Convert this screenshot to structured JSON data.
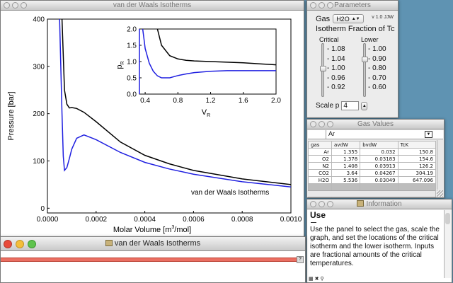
{
  "main_window": {
    "title": "van der Waals Isotherms",
    "plot": {
      "ylabel": "Pressure [bar]",
      "xlabel_prefix": "Molar Volume [m",
      "xlabel_sup": "3",
      "xlabel_suffix": "/mol]",
      "x_ticks": [
        "0.0000",
        "0.0002",
        "0.0004",
        "0.0006",
        "0.0008",
        "0.0010"
      ],
      "y_ticks": [
        "0",
        "100",
        "200",
        "300",
        "400"
      ],
      "annotation": "van der Waals Isotherms",
      "inset": {
        "ylabel_main": "p",
        "ylabel_sub": "R",
        "xlabel_main": "V",
        "xlabel_sub": "R",
        "x_ticks": [
          "0.4",
          "0.8",
          "1.2",
          "1.6",
          "2.0"
        ],
        "y_ticks": [
          "0.0",
          "0.5",
          "1.0",
          "1.5",
          "2.0"
        ]
      }
    }
  },
  "chart_data": [
    {
      "type": "line",
      "title": "",
      "xlabel": "Molar Volume [m3/mol]",
      "ylabel": "Pressure [bar]",
      "xlim": [
        0,
        0.001
      ],
      "ylim": [
        -10,
        400
      ],
      "annotation": "van der Waals Isotherms",
      "grid": false,
      "series": [
        {
          "color": "#000000",
          "x": [
            6e-05,
            7e-05,
            8e-05,
            9e-05,
            0.0001,
            0.00012,
            0.00015,
            0.0002,
            0.0003,
            0.0004,
            0.0005,
            0.0006,
            0.0008,
            0.001
          ],
          "y": [
            400,
            250,
            220,
            212,
            213,
            211,
            203,
            183,
            140,
            112,
            94,
            80,
            62,
            50
          ]
        },
        {
          "color": "#1f1fe0",
          "x": [
            5e-05,
            5.5e-05,
            6e-05,
            6.5e-05,
            7e-05,
            8e-05,
            9e-05,
            0.0001,
            0.00012,
            0.00015,
            0.0002,
            0.0003,
            0.0004,
            0.0005,
            0.0006,
            0.0008,
            0.001
          ],
          "y": [
            400,
            300,
            200,
            110,
            80,
            86,
            105,
            125,
            148,
            155,
            145,
            118,
            97,
            83,
            72,
            56,
            45
          ]
        }
      ]
    },
    {
      "type": "line",
      "title": "",
      "xlabel": "VR",
      "ylabel": "pR",
      "xlim": [
        0.33,
        2.0
      ],
      "ylim": [
        0,
        2.0
      ],
      "grid": false,
      "series": [
        {
          "color": "#000000",
          "x": [
            0.55,
            0.6,
            0.7,
            0.8,
            0.9,
            1.0,
            1.2,
            1.4,
            1.6,
            1.8,
            2.0
          ],
          "y": [
            2.0,
            1.5,
            1.18,
            1.08,
            1.04,
            1.02,
            1.0,
            0.98,
            0.96,
            0.93,
            0.9
          ]
        },
        {
          "color": "#1f1fe0",
          "x": [
            0.37,
            0.38,
            0.4,
            0.45,
            0.5,
            0.55,
            0.6,
            0.7,
            0.8,
            0.9,
            1.0,
            1.2,
            1.4,
            1.6,
            1.8,
            2.0
          ],
          "y": [
            2.0,
            1.8,
            1.4,
            0.95,
            0.7,
            0.56,
            0.5,
            0.5,
            0.57,
            0.62,
            0.66,
            0.7,
            0.72,
            0.72,
            0.72,
            0.72
          ]
        },
        {
          "color": "#1f1fe0",
          "x": [
            0.33,
            0.33
          ],
          "y": [
            0,
            2.0
          ]
        }
      ]
    }
  ],
  "params_window": {
    "title": "Parameters",
    "gas_label": "Gas",
    "gas_value": "H2O",
    "version": "v 1.0 JJW",
    "iso_title": "Isotherm Fraction of Tc",
    "critical_label": "Critical",
    "lower_label": "Lower",
    "critical_ticks": [
      "1.08",
      "1.04",
      "1.00",
      "0.96",
      "0.92"
    ],
    "lower_ticks": [
      "1.00",
      "0.90",
      "0.80",
      "0.70",
      "0.60"
    ],
    "critical_value": 1.0,
    "lower_value": 0.9,
    "scale_label": "Scale p",
    "scale_value": "4"
  },
  "gas_window": {
    "title": "Gas Values",
    "selected_gas": "Ar",
    "columns": [
      "gas",
      "avdW",
      "bvdW",
      "TcK"
    ],
    "rows": [
      [
        "Ar",
        "1.355",
        "0.032",
        "150.8"
      ],
      [
        "O2",
        "1.378",
        "0.03183",
        "154.6"
      ],
      [
        "N2",
        "1.408",
        "0.03913",
        "126.2"
      ],
      [
        "CO2",
        "3.64",
        "0.04267",
        "304.19"
      ],
      [
        "H2O",
        "5.536",
        "0.03049",
        "647.096"
      ]
    ]
  },
  "info_window": {
    "title": "Information",
    "heading": "Use",
    "body": "Use the panel to select the gas, scale the graph, and set the locations of the critical isotherm and the lower isotherm. Inputs are fractional amounts of the critical temperatures."
  },
  "console_window": {
    "title": "van der Waals Isotherms",
    "help": "?"
  },
  "colors": {
    "critical": "#000000",
    "lower": "#1f1fe0",
    "desktop": "#5f93b2"
  }
}
